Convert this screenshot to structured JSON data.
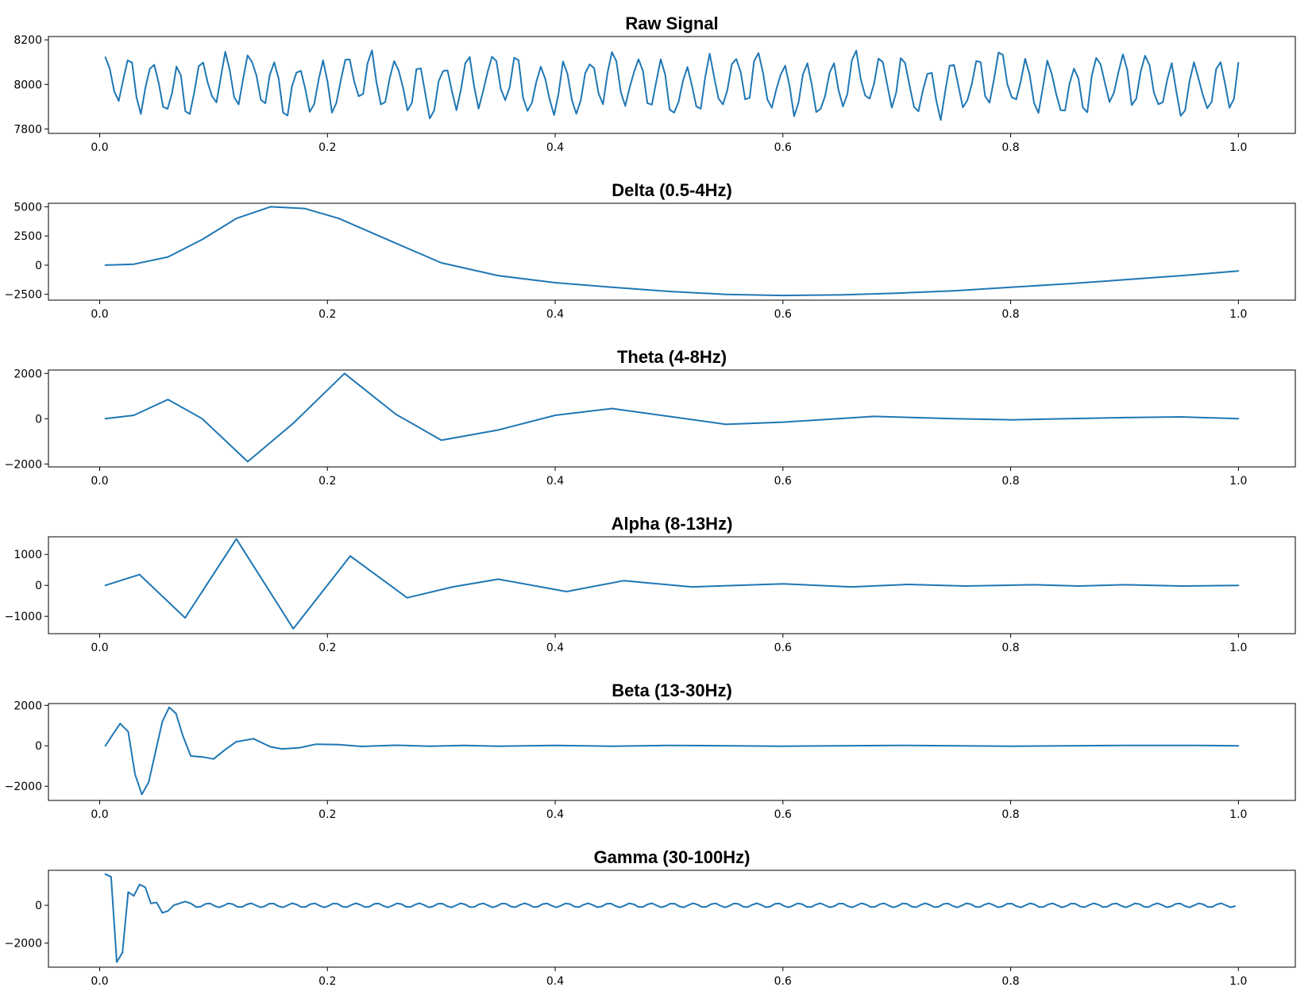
{
  "colors": {
    "line": "#1f77b4",
    "axes": "#000000",
    "background": "#ffffff"
  },
  "chart_data": [
    {
      "type": "line",
      "title": "Raw Signal",
      "xlim": [
        -0.045,
        1.05
      ],
      "ylim": [
        7780,
        8215
      ],
      "x_ticks": [
        0.0,
        0.2,
        0.4,
        0.6,
        0.8,
        1.0
      ],
      "x_tick_labels": [
        "0.0",
        "0.2",
        "0.4",
        "0.6",
        "0.8",
        "1.0"
      ],
      "y_ticks": [
        7800,
        8000,
        8200
      ],
      "y_tick_labels": [
        "7800",
        "8000",
        "8200"
      ],
      "series": [
        {
          "signal": "sum",
          "base": 8000,
          "n": 256,
          "terms": [
            {
              "a": 110,
              "f": 47,
              "p": 0.3
            },
            {
              "a": 30,
              "f": 9,
              "p": 1.0
            },
            {
              "a": 20,
              "f": 71,
              "p": 2.0
            },
            {
              "a": 15,
              "f": 23,
              "p": 0.7
            },
            {
              "a": 12,
              "f": 101,
              "p": 1.4
            }
          ]
        }
      ]
    },
    {
      "type": "line",
      "title": "Delta (0.5-4Hz)",
      "xlim": [
        -0.045,
        1.05
      ],
      "ylim": [
        -3000,
        5300
      ],
      "x_ticks": [
        0.0,
        0.2,
        0.4,
        0.6,
        0.8,
        1.0
      ],
      "x_tick_labels": [
        "0.0",
        "0.2",
        "0.4",
        "0.6",
        "0.8",
        "1.0"
      ],
      "y_ticks": [
        -2500,
        0,
        2500,
        5000
      ],
      "y_tick_labels": [
        "−2500",
        "0",
        "2500",
        "5000"
      ],
      "series": [
        {
          "signal": "points",
          "x": [
            0.005,
            0.03,
            0.06,
            0.09,
            0.12,
            0.15,
            0.18,
            0.21,
            0.25,
            0.3,
            0.35,
            0.4,
            0.45,
            0.5,
            0.55,
            0.6,
            0.65,
            0.7,
            0.75,
            0.8,
            0.85,
            0.9,
            0.95,
            1.0
          ],
          "y": [
            0,
            80,
            700,
            2200,
            4000,
            5000,
            4850,
            4000,
            2300,
            200,
            -900,
            -1500,
            -1900,
            -2250,
            -2500,
            -2600,
            -2550,
            -2400,
            -2200,
            -1900,
            -1600,
            -1250,
            -900,
            -500
          ]
        }
      ]
    },
    {
      "type": "line",
      "title": "Theta (4-8Hz)",
      "xlim": [
        -0.045,
        1.05
      ],
      "ylim": [
        -2130,
        2150
      ],
      "x_ticks": [
        0.0,
        0.2,
        0.4,
        0.6,
        0.8,
        1.0
      ],
      "x_tick_labels": [
        "0.0",
        "0.2",
        "0.4",
        "0.6",
        "0.8",
        "1.0"
      ],
      "y_ticks": [
        -2000,
        0,
        2000
      ],
      "y_tick_labels": [
        "−2000",
        "0",
        "2000"
      ],
      "series": [
        {
          "signal": "points",
          "x": [
            0.005,
            0.03,
            0.06,
            0.09,
            0.13,
            0.17,
            0.215,
            0.26,
            0.3,
            0.35,
            0.4,
            0.45,
            0.5,
            0.55,
            0.6,
            0.68,
            0.75,
            0.8,
            0.85,
            0.9,
            0.95,
            1.0
          ],
          "y": [
            0,
            150,
            850,
            0,
            -1900,
            -200,
            2000,
            200,
            -950,
            -500,
            150,
            450,
            100,
            -250,
            -150,
            100,
            0,
            -50,
            0,
            50,
            80,
            0
          ]
        }
      ]
    },
    {
      "type": "line",
      "title": "Alpha (8-13Hz)",
      "xlim": [
        -0.045,
        1.05
      ],
      "ylim": [
        -1560,
        1570
      ],
      "x_ticks": [
        0.0,
        0.2,
        0.4,
        0.6,
        0.8,
        1.0
      ],
      "x_tick_labels": [
        "0.0",
        "0.2",
        "0.4",
        "0.6",
        "0.8",
        "1.0"
      ],
      "y_ticks": [
        -1000,
        0,
        1000
      ],
      "y_tick_labels": [
        "−1000",
        "0",
        "1000"
      ],
      "series": [
        {
          "signal": "points",
          "x": [
            0.005,
            0.035,
            0.075,
            0.12,
            0.17,
            0.22,
            0.27,
            0.31,
            0.35,
            0.41,
            0.46,
            0.52,
            0.6,
            0.66,
            0.71,
            0.76,
            0.82,
            0.86,
            0.9,
            0.95,
            1.0
          ],
          "y": [
            0,
            350,
            -1050,
            1500,
            -1400,
            950,
            -400,
            -50,
            200,
            -200,
            150,
            -50,
            50,
            -50,
            30,
            -20,
            20,
            -20,
            20,
            -20,
            0
          ]
        }
      ]
    },
    {
      "type": "line",
      "title": "Beta (13-30Hz)",
      "xlim": [
        -0.045,
        1.05
      ],
      "ylim": [
        -2700,
        2090
      ],
      "x_ticks": [
        0.0,
        0.2,
        0.4,
        0.6,
        0.8,
        1.0
      ],
      "x_tick_labels": [
        "0.0",
        "0.2",
        "0.4",
        "0.6",
        "0.8",
        "1.0"
      ],
      "y_ticks": [
        -2000,
        0,
        2000
      ],
      "y_tick_labels": [
        "−2000",
        "0",
        "2000"
      ],
      "series": [
        {
          "signal": "points",
          "x": [
            0.005,
            0.012,
            0.018,
            0.025,
            0.031,
            0.037,
            0.043,
            0.049,
            0.055,
            0.061,
            0.067,
            0.073,
            0.08,
            0.09,
            0.1,
            0.11,
            0.12,
            0.135,
            0.15,
            0.16,
            0.175,
            0.19,
            0.21,
            0.23,
            0.26,
            0.29,
            0.32,
            0.35,
            0.4,
            0.45,
            0.5,
            0.6,
            0.7,
            0.8,
            0.9,
            0.96,
            1.0
          ],
          "y": [
            0,
            600,
            1100,
            700,
            -1400,
            -2400,
            -1800,
            -300,
            1200,
            1900,
            1600,
            500,
            -500,
            -550,
            -650,
            -200,
            200,
            350,
            -50,
            -150,
            -100,
            80,
            60,
            -30,
            30,
            -20,
            20,
            -20,
            20,
            -20,
            20,
            -20,
            20,
            -20,
            20,
            20,
            0
          ]
        }
      ]
    },
    {
      "type": "line",
      "title": "Gamma (30-100Hz)",
      "xlim": [
        -0.045,
        1.05
      ],
      "ylim": [
        -3270,
        1850
      ],
      "x_ticks": [
        0.0,
        0.2,
        0.4,
        0.6,
        0.8,
        1.0
      ],
      "x_tick_labels": [
        "0.0",
        "0.2",
        "0.4",
        "0.6",
        "0.8",
        "1.0"
      ],
      "y_ticks": [
        -2000,
        0
      ],
      "y_tick_labels": [
        "−2000",
        "0"
      ],
      "series": [
        {
          "signal": "mixed",
          "x": [
            0.005,
            0.01,
            0.015,
            0.02,
            0.025,
            0.03,
            0.035,
            0.04,
            0.045,
            0.05,
            0.055,
            0.06,
            0.065,
            0.07,
            0.075,
            0.08
          ],
          "y": [
            1650,
            1500,
            -3000,
            -2500,
            700,
            500,
            1100,
            950,
            100,
            150,
            -400,
            -300,
            0,
            100,
            200,
            100
          ],
          "tail_amp": 110,
          "tail_freq": 54,
          "tail_phase": 0.6
        }
      ]
    }
  ]
}
